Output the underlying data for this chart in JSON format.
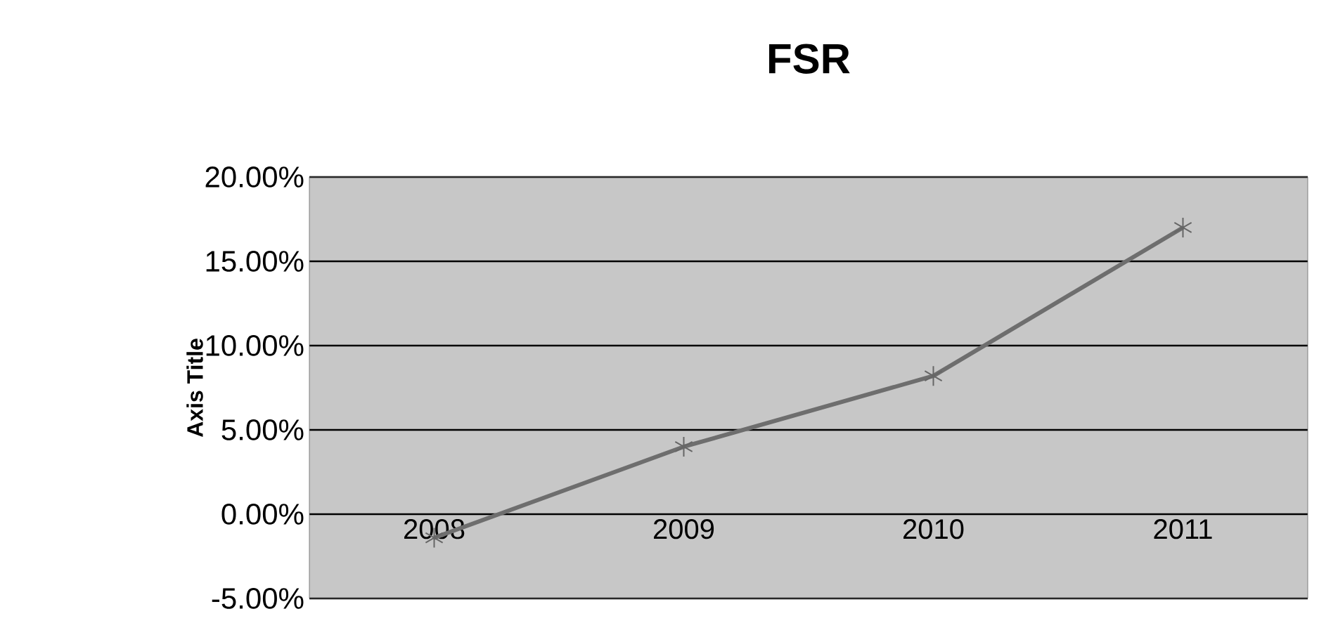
{
  "chart_data": {
    "type": "line",
    "title": "FSR",
    "ylabel": "Axis Title",
    "categories": [
      "2008",
      "2009",
      "2010",
      "2011"
    ],
    "series": [
      {
        "color": "#6e6e6e",
        "values": [
          -1.4,
          4.0,
          8.2,
          17.0
        ]
      }
    ],
    "ylim": [
      -5,
      20
    ],
    "yticks": [
      {
        "value": -5,
        "label": "-5.00%"
      },
      {
        "value": 0,
        "label": "0.00%"
      },
      {
        "value": 5,
        "label": "5.00%"
      },
      {
        "value": 10,
        "label": "10.00%"
      },
      {
        "value": 15,
        "label": "15.00%"
      },
      {
        "value": 20,
        "label": "20.00%"
      }
    ],
    "grid": "y",
    "legend": false,
    "marker": "cross",
    "line_style": "solid"
  }
}
